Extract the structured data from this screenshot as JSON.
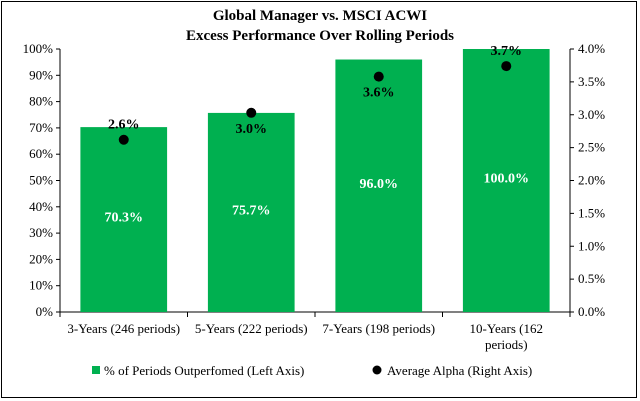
{
  "chart_data": {
    "type": "bar",
    "title": "Global Manager vs. MSCI ACWI",
    "subtitle": "Excess Performance Over Rolling Periods",
    "categories": [
      [
        "3-Years (246 periods)"
      ],
      [
        "5-Years (222 periods)"
      ],
      [
        "7-Years (198 periods)"
      ],
      [
        "10-Years (162",
        "periods)"
      ]
    ],
    "series": [
      {
        "name": "% of Periods Outperfomed (Left Axis)",
        "axis": "left",
        "mark": "bar",
        "color": "#00b050",
        "values": [
          70.3,
          75.7,
          96.0,
          100.0
        ],
        "labels": [
          "70.3%",
          "75.7%",
          "96.0%",
          "100.0%"
        ]
      },
      {
        "name": "Average Alpha (Right Axis)",
        "axis": "right",
        "mark": "dot",
        "color": "#000000",
        "values": [
          2.62,
          3.03,
          3.58,
          3.74
        ],
        "labels": [
          "2.6%",
          "3.0%",
          "3.6%",
          "3.7%"
        ]
      }
    ],
    "ylim_left": [
      0,
      100
    ],
    "ylim_right": [
      0,
      4.0
    ],
    "left_ticks": [
      "0%",
      "10%",
      "20%",
      "30%",
      "40%",
      "50%",
      "60%",
      "70%",
      "80%",
      "90%",
      "100%"
    ],
    "right_ticks": [
      "0.0%",
      "0.5%",
      "1.0%",
      "1.5%",
      "2.0%",
      "2.5%",
      "3.0%",
      "3.5%",
      "4.0%"
    ],
    "grid": false,
    "legend_position": "bottom"
  }
}
